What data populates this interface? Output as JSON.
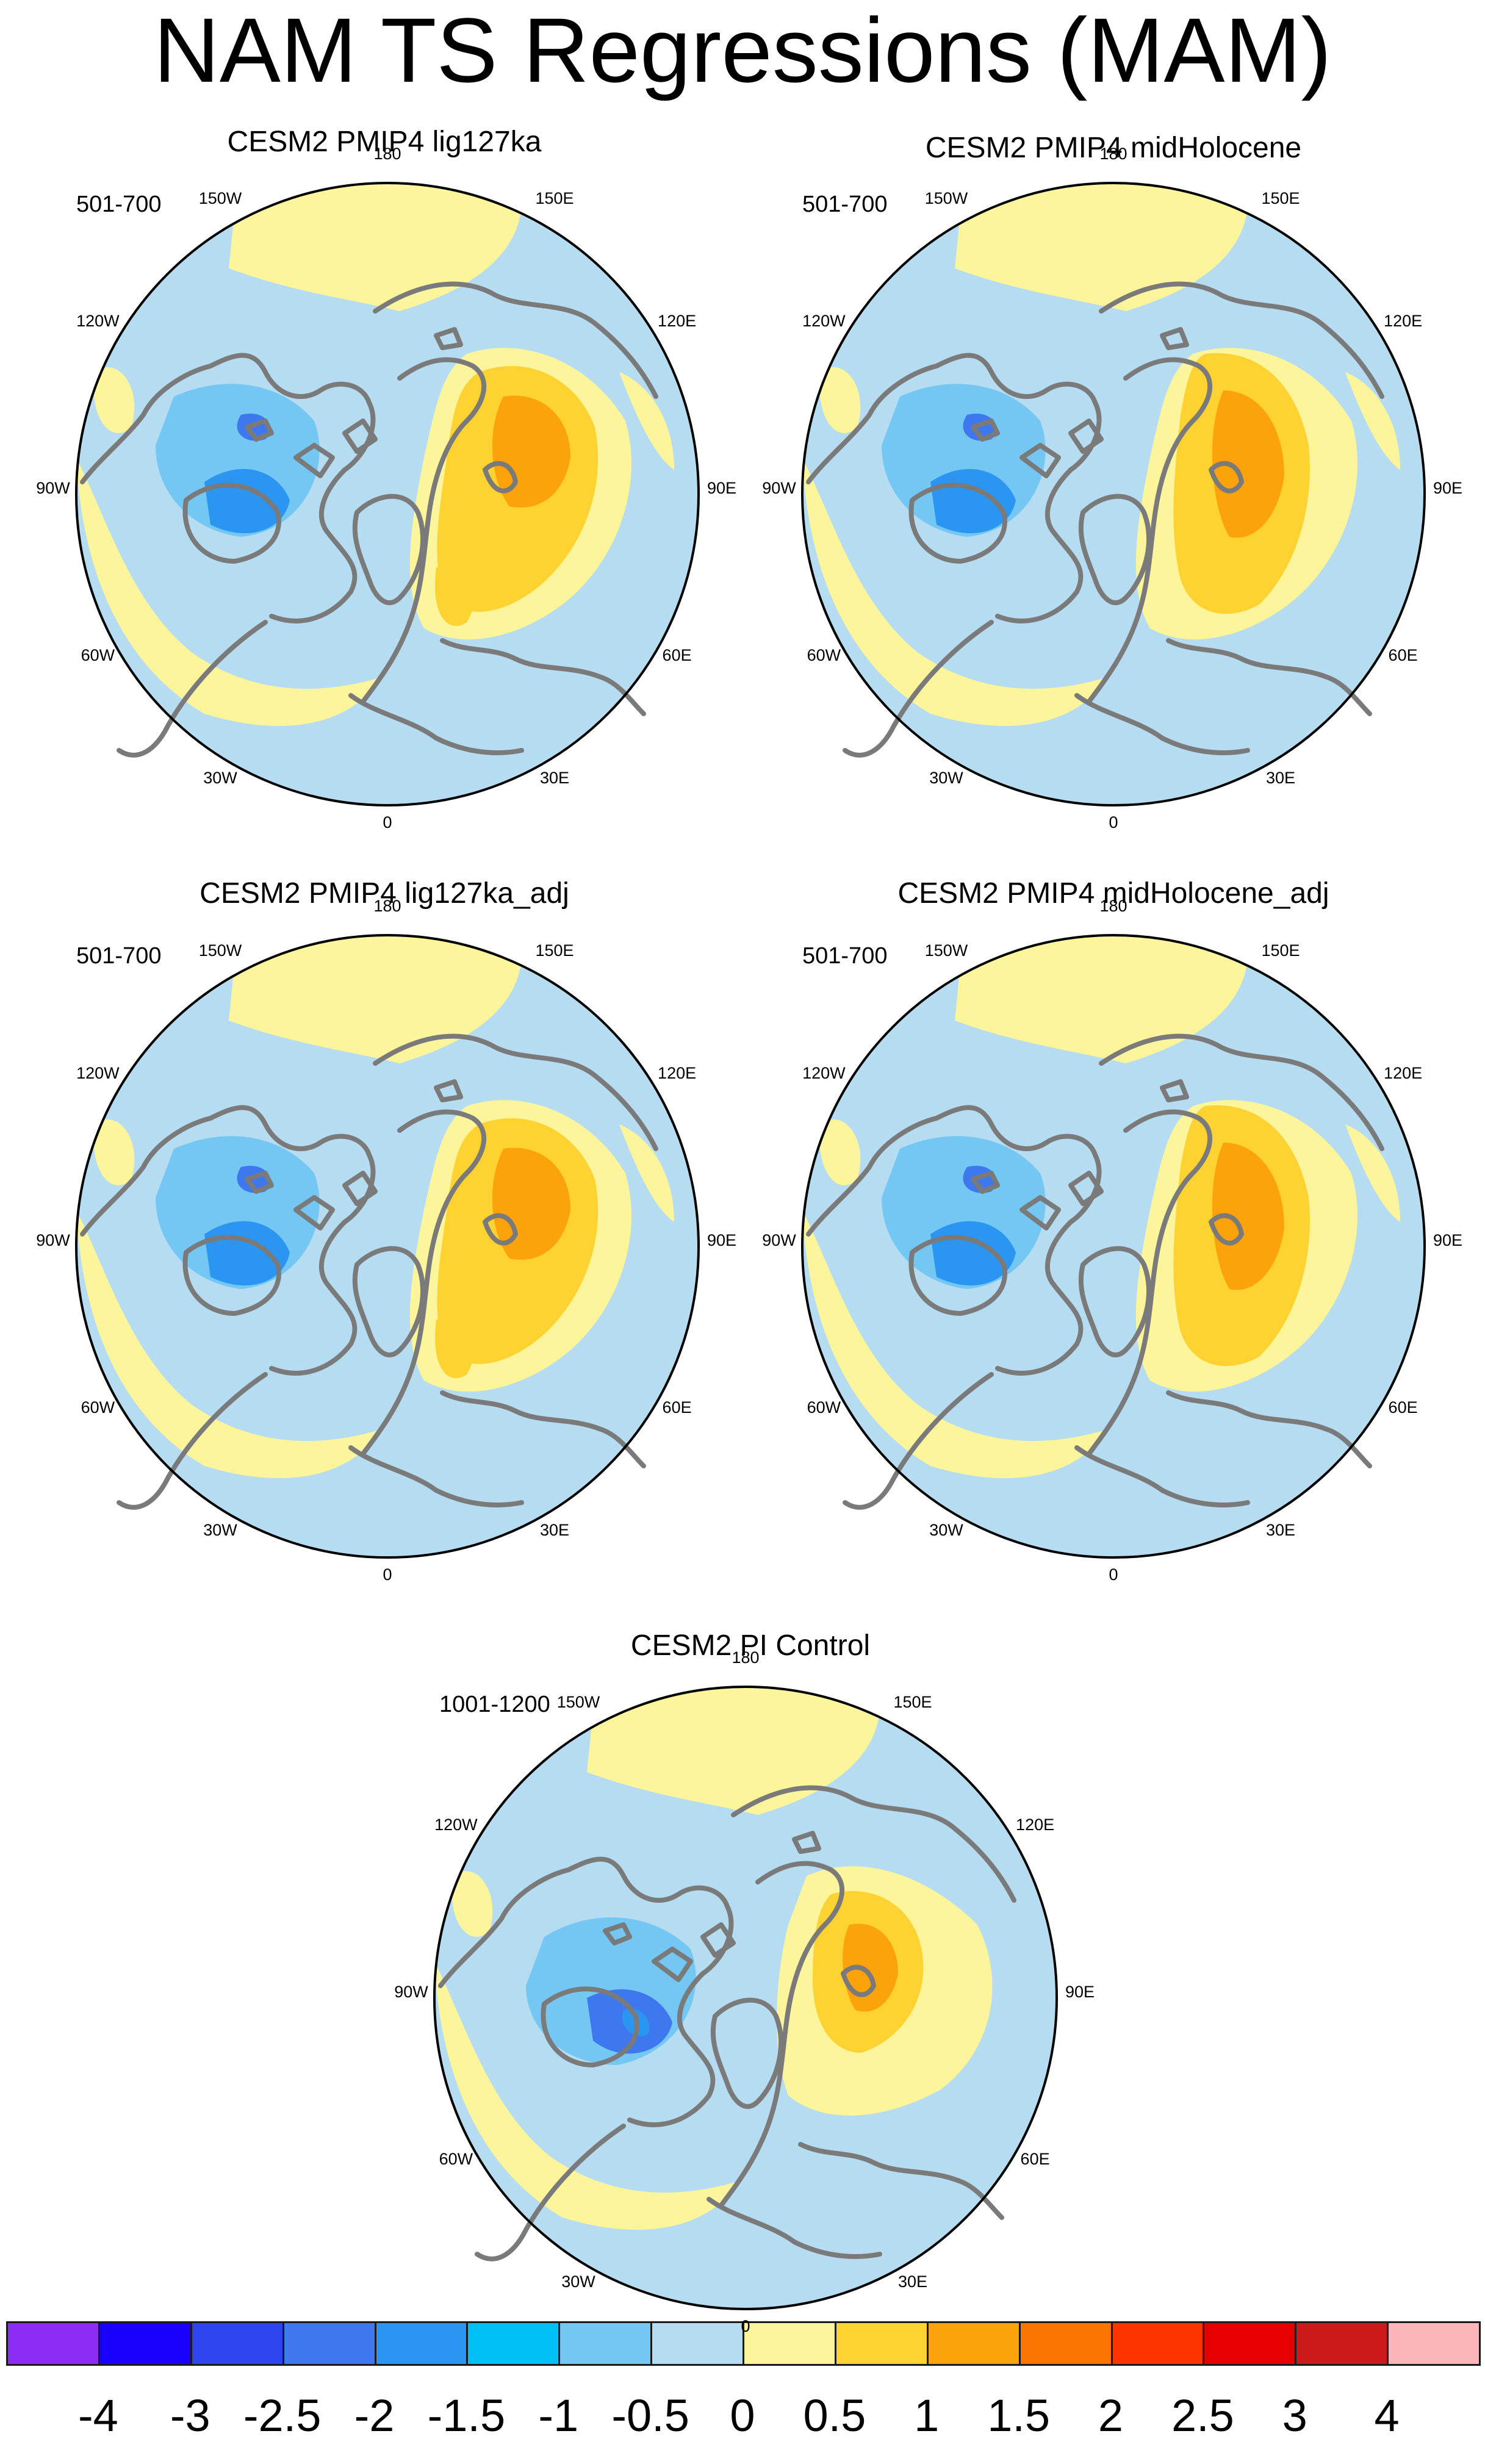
{
  "title": "NAM TS Regressions (MAM)",
  "panels": [
    {
      "id": "lig127ka",
      "title": "CESM2 PMIP4 lig127ka",
      "years": "501-700"
    },
    {
      "id": "midHolocene",
      "title": "CESM2 PMIP4 midHolocene",
      "years": "501-700"
    },
    {
      "id": "lig127ka_adj",
      "title": "CESM2 PMIP4 lig127ka_adj",
      "years": "501-700"
    },
    {
      "id": "midHolocene_adj",
      "title": "CESM2 PMIP4 midHolocene_adj",
      "years": "501-700"
    },
    {
      "id": "pi_control",
      "title": "CESM2 PI Control",
      "years": "1001-1200"
    }
  ],
  "longitude_labels": [
    {
      "text": "0",
      "angle": 0
    },
    {
      "text": "30E",
      "angle": 30
    },
    {
      "text": "60E",
      "angle": 60
    },
    {
      "text": "90E",
      "angle": 90
    },
    {
      "text": "120E",
      "angle": 120
    },
    {
      "text": "150E",
      "angle": 150
    },
    {
      "text": "180",
      "angle": 180
    },
    {
      "text": "150W",
      "angle": 210
    },
    {
      "text": "120W",
      "angle": 240
    },
    {
      "text": "90W",
      "angle": 270
    },
    {
      "text": "60W",
      "angle": 300
    },
    {
      "text": "30W",
      "angle": 330
    }
  ],
  "colorbar": {
    "labels": [
      "-4",
      "-3",
      "-2.5",
      "-2",
      "-1.5",
      "-1",
      "-0.5",
      "0",
      "0.5",
      "1",
      "1.5",
      "2",
      "2.5",
      "3",
      "4"
    ],
    "colors": [
      "#8c2cf5",
      "#1a00ff",
      "#2f45f0",
      "#3d78ee",
      "#2a96f2",
      "#00c0f5",
      "#73c7f2",
      "#b5dcf0",
      "#fdf59c",
      "#fdd231",
      "#fca30c",
      "#fb7503",
      "#fe3400",
      "#e70000",
      "#cc1a1a",
      "#fcb5b8"
    ]
  },
  "colors": {
    "coastline": "#7a7a7a",
    "ocean_neutral": "#b5dcf0",
    "positive_weak": "#fdf59c"
  }
}
